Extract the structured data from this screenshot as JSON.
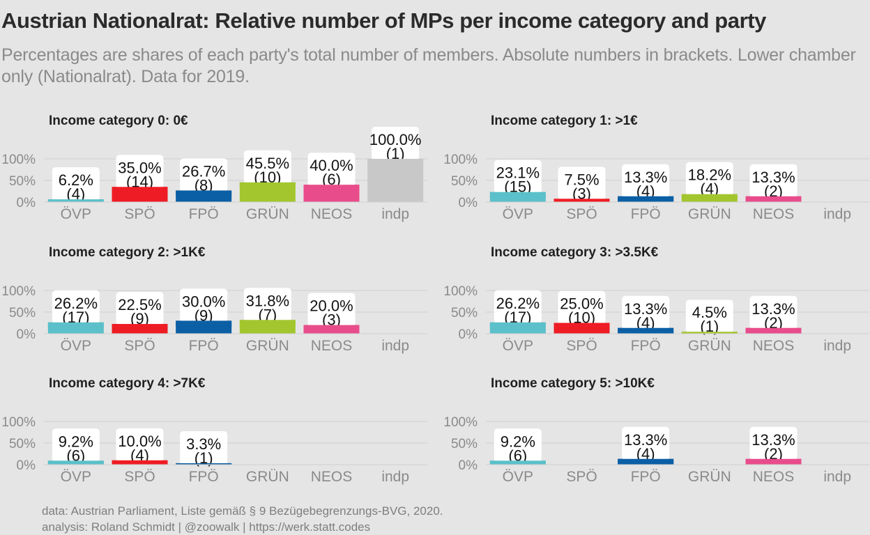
{
  "title": "Austrian Nationalrat: Relative number of MPs per income category and party",
  "subtitle": "Percentages are shares of each party's total number of members. Absolute numbers in brackets. Lower chamber only (Nationalrat). Data for 2019.",
  "caption": {
    "line1": "data: Austrian Parliament, Liste gemäß § 9 Bezügebegrenzungs-BVG, 2020.",
    "line2": "analysis: Roland Schmidt | @zoowalk | https://werk.statt.codes"
  },
  "chart_data": {
    "type": "bar",
    "categories": [
      "ÖVP",
      "SPÖ",
      "FPÖ",
      "GRÜN",
      "NEOS",
      "indp"
    ],
    "colors": [
      "#5bc0c9",
      "#ee1c24",
      "#0b5fa5",
      "#a3c62e",
      "#e84c8b",
      "#c8c8c8"
    ],
    "y_ticks": [
      "0%",
      "50%",
      "100%"
    ],
    "ylim": [
      0,
      100
    ],
    "grid": true,
    "panels": [
      {
        "title": "Income category 0: 0€",
        "values": [
          6.2,
          35.0,
          26.7,
          45.5,
          40.0,
          100.0
        ],
        "pct_labels": [
          "6.2%",
          "35.0%",
          "26.7%",
          "45.5%",
          "40.0%",
          "100.0%"
        ],
        "count_labels": [
          "(4)",
          "(14)",
          "(8)",
          "(10)",
          "(6)",
          "(1)"
        ]
      },
      {
        "title": "Income category 1: >1€",
        "values": [
          23.1,
          7.5,
          13.3,
          18.2,
          13.3,
          null
        ],
        "pct_labels": [
          "23.1%",
          "7.5%",
          "13.3%",
          "18.2%",
          "13.3%",
          null
        ],
        "count_labels": [
          "(15)",
          "(3)",
          "(4)",
          "(4)",
          "(2)",
          null
        ]
      },
      {
        "title": "Income category 2: >1K€",
        "values": [
          26.2,
          22.5,
          30.0,
          31.8,
          20.0,
          null
        ],
        "pct_labels": [
          "26.2%",
          "22.5%",
          "30.0%",
          "31.8%",
          "20.0%",
          null
        ],
        "count_labels": [
          "(17)",
          "(9)",
          "(9)",
          "(7)",
          "(3)",
          null
        ]
      },
      {
        "title": "Income category 3: >3.5K€",
        "values": [
          26.2,
          25.0,
          13.3,
          4.5,
          13.3,
          null
        ],
        "pct_labels": [
          "26.2%",
          "25.0%",
          "13.3%",
          "4.5%",
          "13.3%",
          null
        ],
        "count_labels": [
          "(17)",
          "(10)",
          "(4)",
          "(1)",
          "(2)",
          null
        ]
      },
      {
        "title": "Income category 4: >7K€",
        "values": [
          9.2,
          10.0,
          3.3,
          null,
          null,
          null
        ],
        "pct_labels": [
          "9.2%",
          "10.0%",
          "3.3%",
          null,
          null,
          null
        ],
        "count_labels": [
          "(6)",
          "(4)",
          "(1)",
          null,
          null,
          null
        ]
      },
      {
        "title": "Income category 5: >10K€",
        "values": [
          9.2,
          null,
          13.3,
          null,
          13.3,
          null
        ],
        "pct_labels": [
          "9.2%",
          null,
          "13.3%",
          null,
          "13.3%",
          null
        ],
        "count_labels": [
          "(6)",
          null,
          "(4)",
          null,
          "(2)",
          null
        ]
      }
    ]
  }
}
